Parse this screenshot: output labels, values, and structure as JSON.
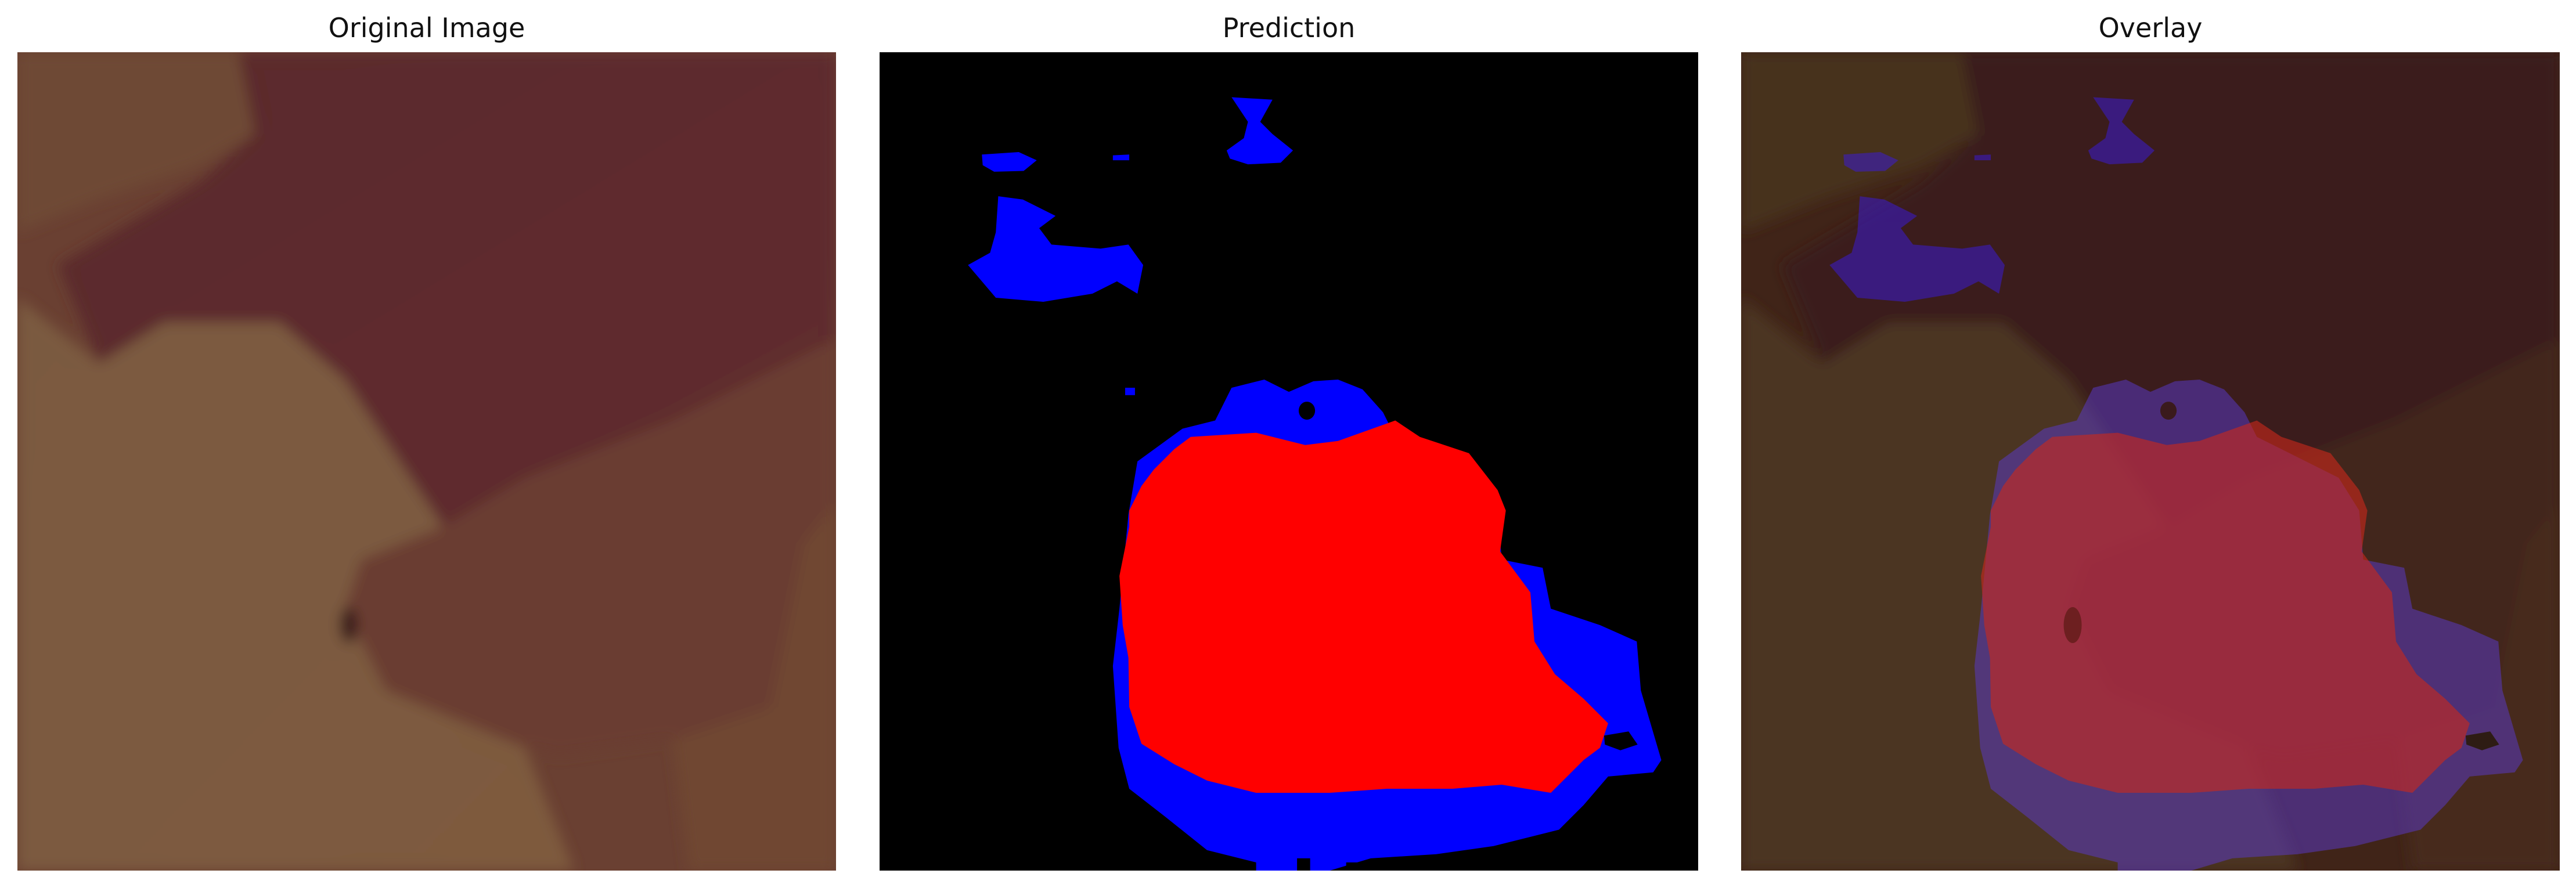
{
  "figure": {
    "panels": [
      {
        "title": "Original Image"
      },
      {
        "title": "Prediction"
      },
      {
        "title": "Overlay"
      }
    ]
  },
  "colors": {
    "background": "#ffffff",
    "prediction_background": "#000000",
    "class_red": "#ff0000",
    "class_blue": "#0000ff",
    "image_brown": "#6b4a3a",
    "image_maroon": "#5e2a2c",
    "image_tan": "#78583e"
  }
}
